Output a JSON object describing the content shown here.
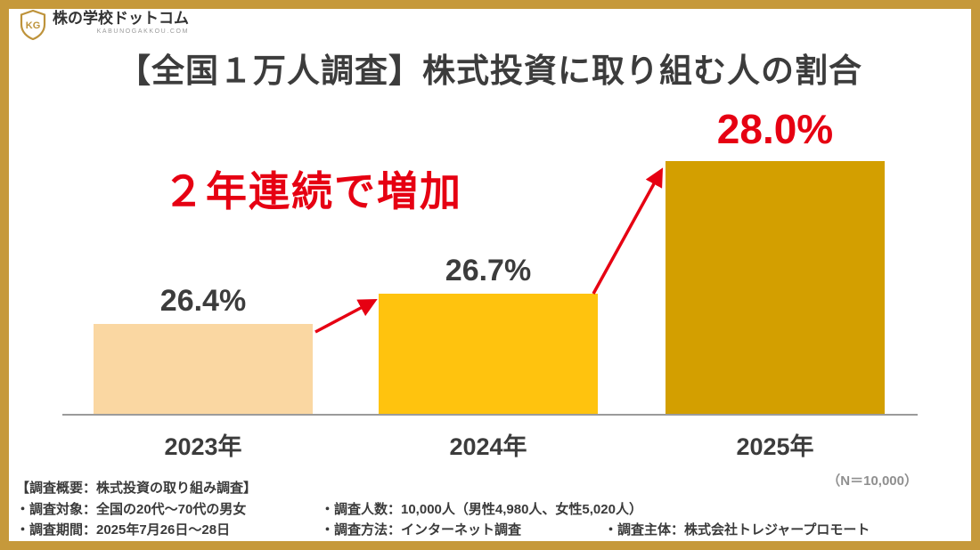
{
  "page": {
    "frame_color": "#C6993B",
    "background": "#FFFFFF"
  },
  "logo": {
    "name": "株の学校ドットコム",
    "domain": "KABUNOGAKKOU.COM",
    "monogram": "KG"
  },
  "title": "【全国１万人調査】株式投資に取り組む人の割合",
  "annotation": {
    "text": "２年連続で増加",
    "color": "#E60012"
  },
  "chart_data": {
    "type": "bar",
    "title": "【全国１万人調査】株式投資に取り組む人の割合",
    "categories": [
      "2023年",
      "2024年",
      "2025年"
    ],
    "values": [
      26.4,
      26.7,
      28.0
    ],
    "labels": [
      "26.4%",
      "26.7%",
      "28.0%"
    ],
    "unit": "%",
    "ylim": [
      25.5,
      28.0
    ],
    "axis_truncated": true,
    "grid": false,
    "legend_position": "none",
    "bar_colors": [
      "#FAD7A2",
      "#FFC30E",
      "#D39F00"
    ],
    "label_colors": [
      "#3C3C3C",
      "#3C3C3C",
      "#E60012"
    ],
    "annotation": "２年連続で増加",
    "n_label": "（N＝10,000）"
  },
  "survey": {
    "heading": "【調査概要：株式投資の取り組み調査】",
    "target": "・調査対象：全国の20代～70代の男女",
    "period": "・調査期間：2025年7月26日～28日",
    "count": "・調査人数：10,000人（男性4,980人、女性5,020人）",
    "method": "・調査方法：インターネット調査",
    "agency": "・調査主体：株式会社トレジャープロモート"
  }
}
